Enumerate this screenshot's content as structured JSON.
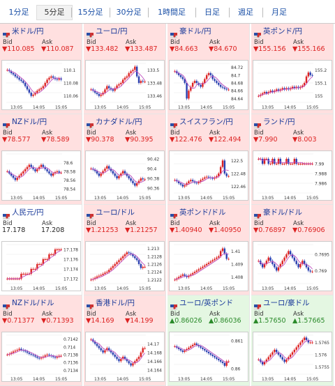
{
  "tabs": [
    "1分足",
    "5分足",
    "15分足",
    "30分足",
    "1時間足",
    "日足",
    "週足",
    "月足"
  ],
  "selected_tab": "5分足",
  "labels": {
    "bid": "Bid",
    "ask": "Ask"
  },
  "cards": [
    {
      "pair": "米ドル/円",
      "bg": "up",
      "dir": "down",
      "bid": "▼110.085",
      "ask": "▼110.087",
      "ticks": [
        "110.1",
        "110.08",
        "110.06"
      ],
      "xticks": [
        "13:05",
        "14:05",
        "15:05"
      ],
      "ymin": 110.05,
      "ymax": 110.11,
      "closes": [
        110.1,
        110.098,
        110.095,
        110.093,
        110.09,
        110.088,
        110.085,
        110.083,
        110.08,
        110.075,
        110.07,
        110.065,
        110.06,
        110.062,
        110.065,
        110.068,
        110.07,
        110.072,
        110.075,
        110.08,
        110.085,
        110.088,
        110.09,
        110.088,
        110.086,
        110.085,
        110.087,
        110.085
      ]
    },
    {
      "pair": "ユーロ/円",
      "bg": "up",
      "dir": "down",
      "bid": "▼133.482",
      "ask": "▼133.487",
      "ticks": [
        "133.5",
        "133.48",
        "133.46"
      ],
      "xticks": [
        "13:05",
        "14:05",
        "15:05"
      ],
      "ymin": 133.45,
      "ymax": 133.51,
      "closes": [
        133.47,
        133.468,
        133.465,
        133.463,
        133.46,
        133.462,
        133.465,
        133.47,
        133.475,
        133.472,
        133.47,
        133.468,
        133.472,
        133.476,
        133.478,
        133.48,
        133.485,
        133.488,
        133.49,
        133.495,
        133.498,
        133.5,
        133.505,
        133.49,
        133.48,
        133.483,
        133.482,
        133.482
      ]
    },
    {
      "pair": "豪ドル/円",
      "bg": "up",
      "dir": "down",
      "bid": "▼84.663",
      "ask": "▼84.670",
      "ticks": [
        "84.72",
        "84.7",
        "84.68",
        "84.66",
        "84.64"
      ],
      "xticks": [
        "13:05",
        "14:05",
        "15:05"
      ],
      "ymin": 84.63,
      "ymax": 84.73,
      "closes": [
        84.71,
        84.705,
        84.7,
        84.695,
        84.69,
        84.68,
        84.64,
        84.66,
        84.67,
        84.68,
        84.685,
        84.68,
        84.675,
        84.67,
        84.68,
        84.69,
        84.7,
        84.705,
        84.7,
        84.69,
        84.685,
        84.68,
        84.675,
        84.67,
        84.668,
        84.665,
        84.663,
        84.663
      ]
    },
    {
      "pair": "英ポンド/円",
      "bg": "up",
      "dir": "down",
      "bid": "▼155.156",
      "ask": "▼155.166",
      "ticks": [
        "155.2",
        "155.1",
        "155"
      ],
      "xticks": [
        "13:05",
        "14:05",
        "15:05"
      ],
      "ymin": 154.95,
      "ymax": 155.25,
      "closes": [
        155.0,
        155.01,
        155.02,
        155.03,
        155.02,
        155.03,
        155.04,
        155.03,
        155.04,
        155.05,
        155.04,
        155.05,
        155.06,
        155.05,
        155.06,
        155.05,
        155.06,
        155.07,
        155.06,
        155.07,
        155.06,
        155.07,
        155.08,
        155.1,
        155.15,
        155.18,
        155.16,
        155.156
      ]
    },
    {
      "pair": "NZドル/円",
      "bg": "up",
      "dir": "down",
      "bid": "▼78.577",
      "ask": "▼78.589",
      "ticks": [
        "78.6",
        "78.58",
        "78.56",
        "78.54"
      ],
      "xticks": [
        "13:05",
        "14:05",
        "15:05"
      ],
      "ymin": 78.53,
      "ymax": 78.62,
      "closes": [
        78.58,
        78.575,
        78.57,
        78.565,
        78.56,
        78.565,
        78.57,
        78.575,
        78.58,
        78.585,
        78.59,
        78.595,
        78.59,
        78.585,
        78.58,
        78.585,
        78.59,
        78.595,
        78.59,
        78.585,
        78.58,
        78.575,
        78.57,
        78.575,
        78.578,
        78.58,
        78.577,
        78.577
      ]
    },
    {
      "pair": "カナダドル/円",
      "bg": "up",
      "dir": "down",
      "bid": "▼90.378",
      "ask": "▼90.395",
      "ticks": [
        "90.42",
        "90.4",
        "90.38",
        "90.36"
      ],
      "xticks": [
        "13:05",
        "14:05",
        "15:05"
      ],
      "ymin": 90.35,
      "ymax": 90.43,
      "closes": [
        90.4,
        90.398,
        90.395,
        90.39,
        90.385,
        90.39,
        90.395,
        90.4,
        90.405,
        90.4,
        90.395,
        90.39,
        90.385,
        90.38,
        90.385,
        90.39,
        90.395,
        90.39,
        90.385,
        90.38,
        90.375,
        90.37,
        90.365,
        90.37,
        90.375,
        90.38,
        90.378,
        90.378
      ]
    },
    {
      "pair": "スイスフラン/円",
      "bg": "up",
      "dir": "down",
      "bid": "▼122.476",
      "ask": "▼122.494",
      "ticks": [
        "122.5",
        "122.48",
        "122.46"
      ],
      "xticks": [
        "13:05",
        "14:05",
        "15:05"
      ],
      "ymin": 122.45,
      "ymax": 122.51,
      "closes": [
        122.47,
        122.468,
        122.465,
        122.463,
        122.46,
        122.462,
        122.465,
        122.468,
        122.47,
        122.468,
        122.466,
        122.465,
        122.467,
        122.47,
        122.472,
        122.474,
        122.475,
        122.474,
        122.473,
        122.472,
        122.474,
        122.476,
        122.48,
        122.49,
        122.5,
        122.48,
        122.476,
        122.476
      ]
    },
    {
      "pair": "ランド/円",
      "bg": "up",
      "dir": "down",
      "bid": "▼7.990",
      "ask": "▼8.003",
      "ticks": [
        "7.99",
        "7.988",
        "7.986"
      ],
      "xticks": [
        "13:05",
        "14:05",
        "15:05"
      ],
      "ymin": 7.984,
      "ymax": 7.992,
      "closes": [
        7.991,
        7.991,
        7.99,
        7.991,
        7.991,
        7.99,
        7.99,
        7.991,
        7.99,
        7.99,
        7.991,
        7.99,
        7.99,
        7.99,
        7.991,
        7.99,
        7.99,
        7.99,
        7.991,
        7.99,
        7.99,
        7.99,
        7.99,
        7.99,
        7.99,
        7.99,
        7.99,
        7.99
      ]
    },
    {
      "pair": "人民元/円",
      "bg": "neutral",
      "dir": "none",
      "bid": "17.178",
      "ask": "17.208",
      "ticks": [
        "17.178",
        "17.176",
        "17.174",
        "17.172"
      ],
      "xticks": [
        "13:05",
        "14:05",
        "15:05"
      ],
      "ymin": 17.171,
      "ymax": 17.179,
      "closes": [
        17.172,
        17.172,
        17.172,
        17.172,
        17.172,
        17.172,
        17.172,
        17.173,
        17.173,
        17.173,
        17.173,
        17.173,
        17.174,
        17.174,
        17.174,
        17.175,
        17.175,
        17.175,
        17.176,
        17.176,
        17.176,
        17.177,
        17.177,
        17.177,
        17.178,
        17.178,
        17.178,
        17.178
      ]
    },
    {
      "pair": "ユーロ/ドル",
      "bg": "up",
      "dir": "down",
      "bid": "▼1.21253",
      "ask": "▼1.21257",
      "ticks": [
        "1.213",
        "1.2128",
        "1.2126",
        "1.2124",
        "1.2122"
      ],
      "xticks": [
        "13:05",
        "14:05",
        "15:05"
      ],
      "ymin": 1.2121,
      "ymax": 1.2131,
      "closes": [
        1.2122,
        1.21222,
        1.21225,
        1.21228,
        1.2123,
        1.21232,
        1.21235,
        1.21238,
        1.2124,
        1.21245,
        1.2125,
        1.21255,
        1.2126,
        1.21265,
        1.2127,
        1.21275,
        1.2128,
        1.21285,
        1.2129,
        1.21288,
        1.21285,
        1.2128,
        1.21275,
        1.2127,
        1.2126,
        1.2125,
        1.21253,
        1.21253
      ]
    },
    {
      "pair": "英ポンド/ドル",
      "bg": "up",
      "dir": "down",
      "bid": "▼1.40940",
      "ask": "▼1.40950",
      "ticks": [
        "1.41",
        "1.409",
        "1.408"
      ],
      "xticks": [
        "13:05",
        "14:05",
        "15:05"
      ],
      "ymin": 1.4075,
      "ymax": 1.4105,
      "closes": [
        1.4078,
        1.4079,
        1.408,
        1.4081,
        1.4082,
        1.4081,
        1.408,
        1.4081,
        1.4082,
        1.4083,
        1.4084,
        1.4085,
        1.4086,
        1.4087,
        1.4088,
        1.4089,
        1.409,
        1.4091,
        1.4092,
        1.4093,
        1.4094,
        1.4095,
        1.4096,
        1.41,
        1.4102,
        1.4098,
        1.4094,
        1.4094
      ]
    },
    {
      "pair": "豪ドル/ドル",
      "bg": "up",
      "dir": "down",
      "bid": "▼0.76897",
      "ask": "▼0.76906",
      "ticks": [
        "0.7695",
        "0.769"
      ],
      "xticks": [
        "13:05",
        "14:05",
        "15:05"
      ],
      "ymin": 0.7686,
      "ymax": 0.7698,
      "closes": [
        0.7693,
        0.7692,
        0.7691,
        0.7692,
        0.7693,
        0.7694,
        0.7693,
        0.7692,
        0.7691,
        0.769,
        0.7691,
        0.7692,
        0.7693,
        0.7694,
        0.7695,
        0.7696,
        0.7695,
        0.7694,
        0.7693,
        0.7692,
        0.7691,
        0.7692,
        0.7693,
        0.7692,
        0.7691,
        0.769,
        0.76897,
        0.76897
      ]
    },
    {
      "pair": "NZドル/ドル",
      "bg": "up",
      "dir": "down",
      "bid": "▼0.71377",
      "ask": "▼0.71393",
      "ticks": [
        "0.7142",
        "0.714",
        "0.7138",
        "0.7136",
        "0.7134"
      ],
      "xticks": [
        "13:05",
        "14:05",
        "15:05"
      ],
      "ymin": 0.7133,
      "ymax": 0.7143,
      "closes": [
        0.7138,
        0.71382,
        0.71385,
        0.71388,
        0.7139,
        0.71392,
        0.71395,
        0.71392,
        0.7139,
        0.71388,
        0.71385,
        0.71382,
        0.7138,
        0.71378,
        0.71375,
        0.71372,
        0.7137,
        0.71372,
        0.71375,
        0.71378,
        0.7138,
        0.71378,
        0.71376,
        0.71374,
        0.71372,
        0.71375,
        0.71377,
        0.71377
      ]
    },
    {
      "pair": "香港ドル/円",
      "bg": "up",
      "dir": "down",
      "bid": "▼14.169",
      "ask": "▼14.199",
      "ticks": [
        "14.17",
        "14.168",
        "14.166",
        "14.164"
      ],
      "xticks": [
        "13:05",
        "14:05",
        "15:05"
      ],
      "ymin": 14.163,
      "ymax": 14.172,
      "closes": [
        14.171,
        14.1705,
        14.17,
        14.1695,
        14.169,
        14.1685,
        14.168,
        14.1685,
        14.169,
        14.1685,
        14.168,
        14.1675,
        14.167,
        14.1665,
        14.166,
        14.1665,
        14.167,
        14.1665,
        14.166,
        14.1655,
        14.165,
        14.1655,
        14.166,
        14.1665,
        14.167,
        14.168,
        14.169,
        14.169
      ]
    },
    {
      "pair": "ユーロ/英ポンド",
      "bg": "green",
      "dir": "up",
      "bid": "▲0.86026",
      "ask": "▲0.86036",
      "ticks": [
        "0.861",
        "0.86"
      ],
      "xticks": [
        "13:05",
        "14:05",
        "15:05"
      ],
      "ymin": 0.8598,
      "ymax": 0.8612,
      "closes": [
        0.8608,
        0.86075,
        0.8607,
        0.86065,
        0.8606,
        0.86065,
        0.8607,
        0.86075,
        0.8608,
        0.86085,
        0.8609,
        0.86085,
        0.8608,
        0.86075,
        0.8607,
        0.86065,
        0.8606,
        0.86055,
        0.8605,
        0.86045,
        0.8604,
        0.86035,
        0.8603,
        0.86025,
        0.8602,
        0.8601,
        0.86026,
        0.86026
      ]
    },
    {
      "pair": "ユーロ/豪ドル",
      "bg": "green",
      "dir": "up",
      "bid": "▲1.57650",
      "ask": "▲1.57665",
      "ticks": [
        "1.5765",
        "1.576",
        "1.5755"
      ],
      "xticks": [
        "13:05",
        "14:05",
        "15:05"
      ],
      "ymin": 1.5752,
      "ymax": 1.5768,
      "closes": [
        1.5758,
        1.5757,
        1.5756,
        1.5757,
        1.5758,
        1.5759,
        1.576,
        1.5761,
        1.5762,
        1.5761,
        1.576,
        1.5759,
        1.5758,
        1.5757,
        1.5758,
        1.5759,
        1.576,
        1.5761,
        1.5762,
        1.5763,
        1.5764,
        1.5765,
        1.5766,
        1.5767,
        1.5766,
        1.5765,
        1.5765,
        1.5765
      ]
    }
  ]
}
